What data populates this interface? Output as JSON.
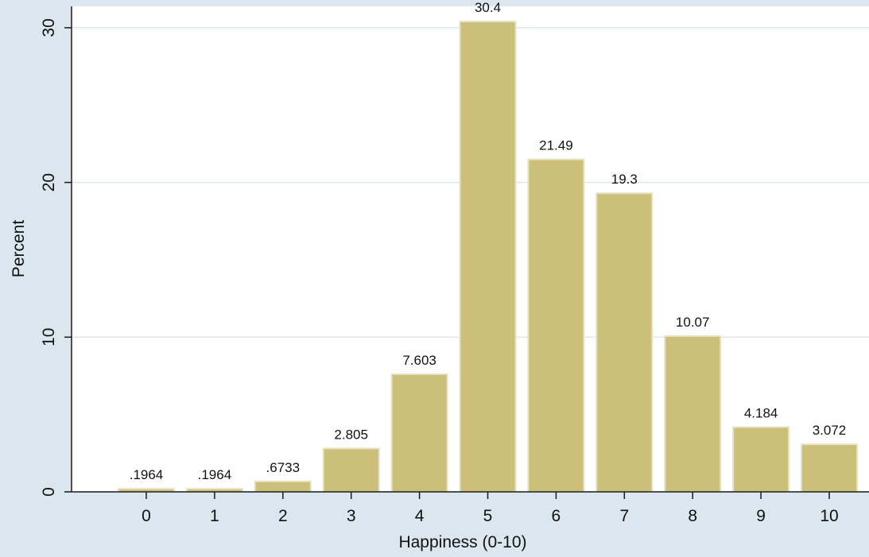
{
  "chart_data": {
    "type": "bar",
    "title": "",
    "xlabel": "Happiness (0-10)",
    "ylabel": "Percent",
    "categories": [
      "0",
      "1",
      "2",
      "3",
      "4",
      "5",
      "6",
      "7",
      "8",
      "9",
      "10"
    ],
    "values": [
      0.1964,
      0.1964,
      0.6733,
      2.805,
      7.603,
      30.4,
      21.49,
      19.3,
      10.07,
      4.184,
      3.072
    ],
    "data_labels": [
      ".1964",
      ".1964",
      ".6733",
      "2.805",
      "7.603",
      "30.4",
      "21.49",
      "19.3",
      "10.07",
      "4.184",
      "3.072"
    ],
    "yticks": [
      0,
      10,
      20,
      30
    ],
    "ylim": [
      0,
      30.4
    ],
    "grid": true,
    "colors": {
      "bar_fill": "#cbbf7a",
      "bar_outline": "#e7e2c3",
      "plot_background": "#ffffff",
      "outer_background": "#dbe6ee",
      "grid": "#dfe7ec"
    }
  }
}
